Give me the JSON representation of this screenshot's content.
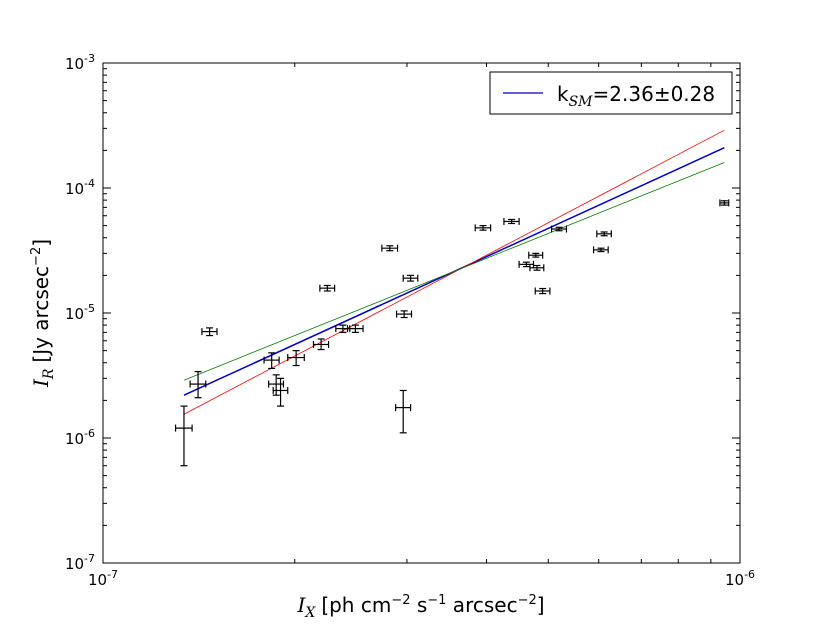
{
  "chart_data": {
    "type": "scatter",
    "xscale": "log",
    "yscale": "log",
    "xlim": [
      1e-07,
      1e-06
    ],
    "ylim": [
      1e-07,
      0.001
    ],
    "x_ticks": [
      {
        "value": 1e-07,
        "base": "10",
        "exp": "-7"
      },
      {
        "value": 1e-06,
        "base": "10",
        "exp": "-6"
      }
    ],
    "y_ticks": [
      {
        "value": 1e-07,
        "base": "10",
        "exp": "-7"
      },
      {
        "value": 1e-06,
        "base": "10",
        "exp": "-6"
      },
      {
        "value": 1e-05,
        "base": "10",
        "exp": "-5"
      },
      {
        "value": 0.0001,
        "base": "10",
        "exp": "-4"
      },
      {
        "value": 0.001,
        "base": "10",
        "exp": "-3"
      }
    ],
    "xlabel": {
      "symbol": "I",
      "sub": "X",
      "text": "[ph cm",
      "sup1": "−2",
      "text2": " s",
      "sup2": "−1",
      "text3": " arcsec",
      "sup3": "−2",
      "text4": "]"
    },
    "ylabel": {
      "symbol": "I",
      "sub": "R",
      "text": "[Jy arcsec",
      "sup": "−2",
      "text2": "]"
    },
    "legend": {
      "position": "top-right",
      "label_prefix": "k",
      "label_sub": "SM",
      "label_suffix": "=2.36±0.28",
      "color": "#0000cc"
    },
    "points": [
      {
        "x": 1.34e-07,
        "y": 1.2e-06,
        "xerr": [
          1.3e-07,
          1.38e-07
        ],
        "yerr": [
          6e-07,
          1.8e-06
        ]
      },
      {
        "x": 1.41e-07,
        "y": 2.7e-06,
        "xerr": [
          1.37e-07,
          1.45e-07
        ],
        "yerr": [
          2.1e-06,
          3.4e-06
        ]
      },
      {
        "x": 1.47e-07,
        "y": 7.1e-06,
        "xerr": [
          1.43e-07,
          1.51e-07
        ],
        "yerr": [
          6.6e-06,
          7.6e-06
        ]
      },
      {
        "x": 1.84e-07,
        "y": 4.2e-06,
        "xerr": [
          1.79e-07,
          1.89e-07
        ],
        "yerr": [
          3.6e-06,
          4.8e-06
        ]
      },
      {
        "x": 1.87e-07,
        "y": 2.7e-06,
        "xerr": [
          1.82e-07,
          1.92e-07
        ],
        "yerr": [
          2.2e-06,
          3.2e-06
        ]
      },
      {
        "x": 1.9e-07,
        "y": 2.4e-06,
        "xerr": [
          1.85e-07,
          1.95e-07
        ],
        "yerr": [
          1.8e-06,
          3e-06
        ]
      },
      {
        "x": 2.01e-07,
        "y": 4.4e-06,
        "xerr": [
          1.95e-07,
          2.07e-07
        ],
        "yerr": [
          3.8e-06,
          5e-06
        ]
      },
      {
        "x": 2.2e-07,
        "y": 5.6e-06,
        "xerr": [
          2.14e-07,
          2.26e-07
        ],
        "yerr": [
          5.1e-06,
          6.2e-06
        ]
      },
      {
        "x": 2.25e-07,
        "y": 1.58e-05,
        "xerr": [
          2.19e-07,
          2.31e-07
        ],
        "yerr": [
          1.5e-05,
          1.66e-05
        ]
      },
      {
        "x": 2.38e-07,
        "y": 7.5e-06,
        "xerr": [
          2.32e-07,
          2.44e-07
        ],
        "yerr": [
          7e-06,
          8e-06
        ]
      },
      {
        "x": 2.49e-07,
        "y": 7.5e-06,
        "xerr": [
          2.42e-07,
          2.56e-07
        ],
        "yerr": [
          7e-06,
          8e-06
        ]
      },
      {
        "x": 2.82e-07,
        "y": 3.3e-05,
        "xerr": [
          2.74e-07,
          2.9e-07
        ],
        "yerr": [
          3.15e-05,
          3.45e-05
        ]
      },
      {
        "x": 2.96e-07,
        "y": 1.75e-06,
        "xerr": [
          2.88e-07,
          3.04e-07
        ],
        "yerr": [
          1.1e-06,
          2.4e-06
        ]
      },
      {
        "x": 2.97e-07,
        "y": 9.8e-06,
        "xerr": [
          2.89e-07,
          3.05e-07
        ],
        "yerr": [
          9.2e-06,
          1.04e-05
        ]
      },
      {
        "x": 3.04e-07,
        "y": 1.9e-05,
        "xerr": [
          2.96e-07,
          3.12e-07
        ],
        "yerr": [
          1.8e-05,
          2e-05
        ]
      },
      {
        "x": 3.95e-07,
        "y": 4.8e-05,
        "xerr": [
          3.84e-07,
          4.06e-07
        ],
        "yerr": [
          4.6e-05,
          5e-05
        ]
      },
      {
        "x": 4.38e-07,
        "y": 5.4e-05,
        "xerr": [
          4.26e-07,
          4.5e-07
        ],
        "yerr": [
          5.2e-05,
          5.6e-05
        ]
      },
      {
        "x": 4.62e-07,
        "y": 2.45e-05,
        "xerr": [
          4.5e-07,
          4.74e-07
        ],
        "yerr": [
          2.35e-05,
          2.55e-05
        ]
      },
      {
        "x": 4.78e-07,
        "y": 2.9e-05,
        "xerr": [
          4.66e-07,
          4.9e-07
        ],
        "yerr": [
          2.8e-05,
          3e-05
        ]
      },
      {
        "x": 4.8e-07,
        "y": 2.3e-05,
        "xerr": [
          4.68e-07,
          4.92e-07
        ],
        "yerr": [
          2.2e-05,
          2.4e-05
        ]
      },
      {
        "x": 4.9e-07,
        "y": 1.5e-05,
        "xerr": [
          4.77e-07,
          5.03e-07
        ],
        "yerr": [
          1.43e-05,
          1.57e-05
        ]
      },
      {
        "x": 5.2e-07,
        "y": 4.7e-05,
        "xerr": [
          5.06e-07,
          5.34e-07
        ],
        "yerr": [
          4.55e-05,
          4.85e-05
        ]
      },
      {
        "x": 6.05e-07,
        "y": 3.2e-05,
        "xerr": [
          5.89e-07,
          6.21e-07
        ],
        "yerr": [
          3.1e-05,
          3.3e-05
        ]
      },
      {
        "x": 6.12e-07,
        "y": 4.3e-05,
        "xerr": [
          5.96e-07,
          6.28e-07
        ],
        "yerr": [
          4.15e-05,
          4.45e-05
        ]
      },
      {
        "x": 9.45e-07,
        "y": 7.6e-05,
        "xerr": [
          9.3e-07,
          9.6e-07
        ],
        "yerr": [
          7.3e-05,
          7.9e-05
        ]
      }
    ],
    "fit_lines": [
      {
        "color": "#0000cc",
        "points": [
          [
            1.34e-07,
            2.2e-06
          ],
          [
            9.45e-07,
            0.00021
          ]
        ]
      },
      {
        "color": "#ff0000",
        "points": [
          [
            1.34e-07,
            1.55e-06
          ],
          [
            9.45e-07,
            0.00029
          ]
        ]
      },
      {
        "color": "#008000",
        "points": [
          [
            1.34e-07,
            2.9e-06
          ],
          [
            9.45e-07,
            0.00016
          ]
        ]
      }
    ],
    "grid": false
  }
}
